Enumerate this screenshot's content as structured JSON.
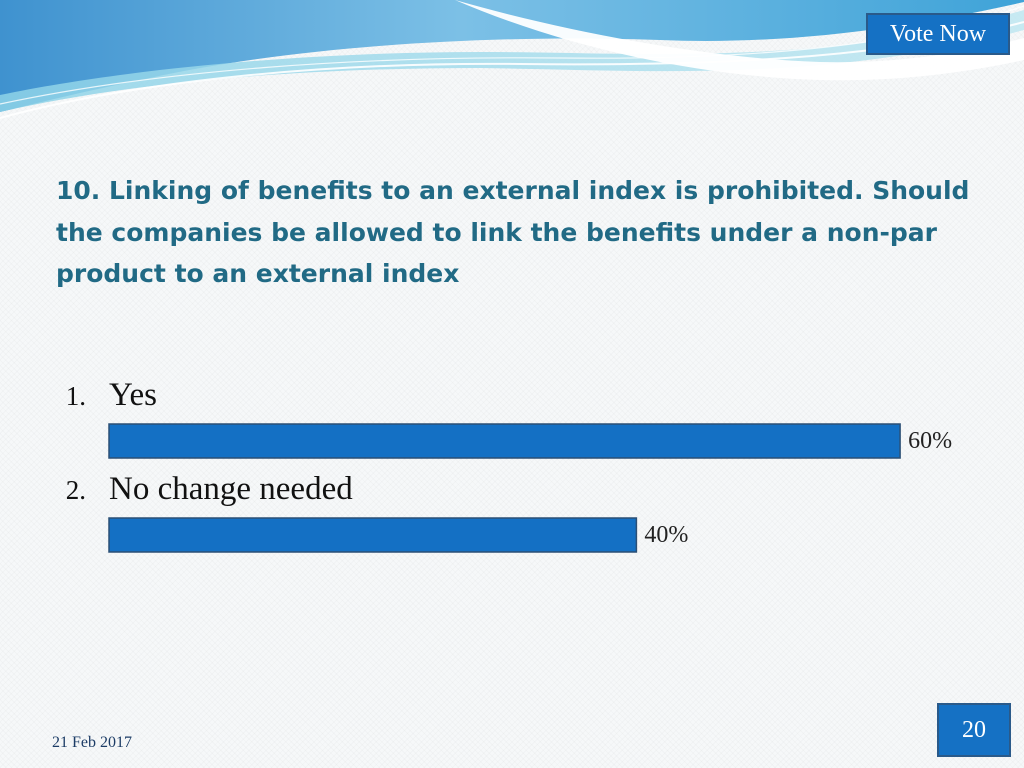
{
  "header": {
    "vote_label": "Vote Now"
  },
  "question": "10. Linking of benefits to an external index is prohibited. Should the companies be allowed to link the benefits under a non-par product to an external index",
  "chart_data": {
    "type": "bar",
    "orientation": "horizontal",
    "categories": [
      "Yes",
      "No change needed"
    ],
    "values": [
      60,
      40
    ],
    "value_labels": [
      "60%",
      "40%"
    ],
    "option_numbers": [
      "1.",
      "2."
    ],
    "xlim": [
      0,
      100
    ],
    "bar_color": "#1470c4"
  },
  "footer": {
    "date": "21 Feb 2017",
    "page_number": "20"
  }
}
